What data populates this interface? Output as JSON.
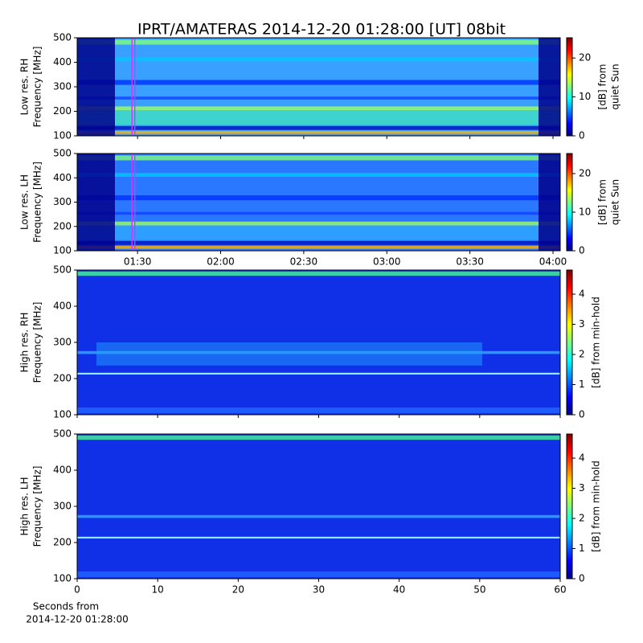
{
  "chart_data": [
    {
      "type": "spectrogram",
      "title": "IPRT/AMATERAS 2014-12-20 01:28:00 [UT]   08bit",
      "ylabel": [
        "Low res. RH",
        "Frequency [MHz]"
      ],
      "ylim": [
        100,
        500
      ],
      "yticks": [
        100,
        200,
        300,
        400,
        500
      ],
      "xlim": [
        68.2,
        242.6
      ],
      "xticks": [
        90,
        120,
        150,
        180,
        210,
        240
      ],
      "show_xticklabels": false,
      "window": [
        88,
        89
      ],
      "window_color": "#c040ff",
      "clabel": [
        "[dB] from",
        "quiet Sun"
      ],
      "clim": [
        0,
        25.2
      ],
      "cticks": [
        0,
        10,
        20
      ]
    },
    {
      "type": "spectrogram",
      "ylabel": [
        "Low res. LH",
        "Frequency [MHz]"
      ],
      "ylim": [
        100,
        500
      ],
      "yticks": [
        100,
        200,
        300,
        400,
        500
      ],
      "xlim": [
        68.2,
        242.6
      ],
      "xticks": [
        {
          "value": 90,
          "label": "01:30"
        },
        {
          "value": 120,
          "label": "02:00"
        },
        {
          "value": 150,
          "label": "02:30"
        },
        {
          "value": 180,
          "label": "03:00"
        },
        {
          "value": 210,
          "label": "03:30"
        },
        {
          "value": 240,
          "label": "04:00"
        }
      ],
      "show_xticklabels": true,
      "window": [
        88,
        89
      ],
      "window_color": "#c040ff",
      "clabel": [
        "[dB] from",
        "quiet Sun"
      ],
      "clim": [
        0,
        25.2
      ],
      "cticks": [
        0,
        10,
        20
      ]
    },
    {
      "type": "spectrogram",
      "ylabel": [
        "High res. RH",
        "Frequency [MHz]"
      ],
      "ylim": [
        100,
        500
      ],
      "yticks": [
        100,
        200,
        300,
        400,
        500
      ],
      "xlim": [
        0,
        60
      ],
      "xticks": [
        0,
        10,
        20,
        30,
        40,
        50,
        60
      ],
      "show_xticklabels": false,
      "clabel": [
        "[dB] from min-hold"
      ],
      "clim": [
        0,
        4.8
      ],
      "cticks": [
        0,
        1,
        2,
        3,
        4
      ]
    },
    {
      "type": "spectrogram",
      "ylabel": [
        "High res. LH",
        "Frequency [MHz]"
      ],
      "ylim": [
        100,
        500
      ],
      "yticks": [
        100,
        200,
        300,
        400,
        500
      ],
      "xlim": [
        0,
        60
      ],
      "xticks": [
        0,
        10,
        20,
        30,
        40,
        50,
        60
      ],
      "show_xticklabels": true,
      "xlabel": [
        "Seconds from",
        "2014-12-20 01:28:00"
      ],
      "clabel": [
        "[dB] from min-hold"
      ],
      "clim": [
        0,
        4.8
      ],
      "cticks": [
        0,
        1,
        2,
        3,
        4
      ]
    }
  ]
}
